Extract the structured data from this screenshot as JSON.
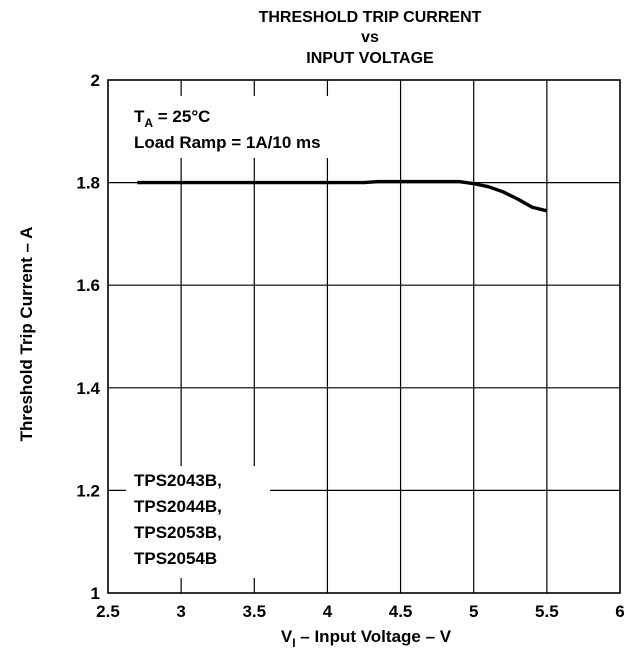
{
  "chart_data": {
    "type": "line",
    "title_lines": [
      "THRESHOLD TRIP CURRENT",
      "vs",
      "INPUT VOLTAGE"
    ],
    "xlabel": {
      "prefix": "V",
      "subscript": "I",
      "suffix": " – Input Voltage – V"
    },
    "ylabel": "Threshold Trip Current – A",
    "xlim": [
      2.5,
      6
    ],
    "ylim": [
      1,
      2
    ],
    "x_ticks": [
      2.5,
      3,
      3.5,
      4,
      4.5,
      5,
      5.5,
      6
    ],
    "x_tick_labels": [
      "2.5",
      "3",
      "3.5",
      "4",
      "4.5",
      "5",
      "5.5",
      "6"
    ],
    "y_ticks": [
      1,
      1.2,
      1.4,
      1.6,
      1.8,
      2
    ],
    "y_tick_labels": [
      "1",
      "1.2",
      "1.4",
      "1.6",
      "1.8",
      "2"
    ],
    "grid": true,
    "annotation_top": {
      "ta_prefix": "T",
      "ta_subscript": "A",
      "ta_suffix": " = 25°C",
      "load_ramp": "Load Ramp = 1A/10 ms"
    },
    "annotation_bottom": [
      "TPS2043B,",
      "TPS2044B,",
      "TPS2053B,",
      "TPS2054B"
    ],
    "series": [
      {
        "x": [
          2.7,
          3.0,
          3.5,
          4.0,
          4.25,
          4.35,
          4.5,
          4.7,
          4.9,
          5.0,
          5.1,
          5.2,
          5.3,
          5.4,
          5.5
        ],
        "y": [
          1.8,
          1.8,
          1.8,
          1.8,
          1.8,
          1.802,
          1.802,
          1.802,
          1.802,
          1.798,
          1.792,
          1.782,
          1.768,
          1.752,
          1.745
        ]
      }
    ]
  }
}
